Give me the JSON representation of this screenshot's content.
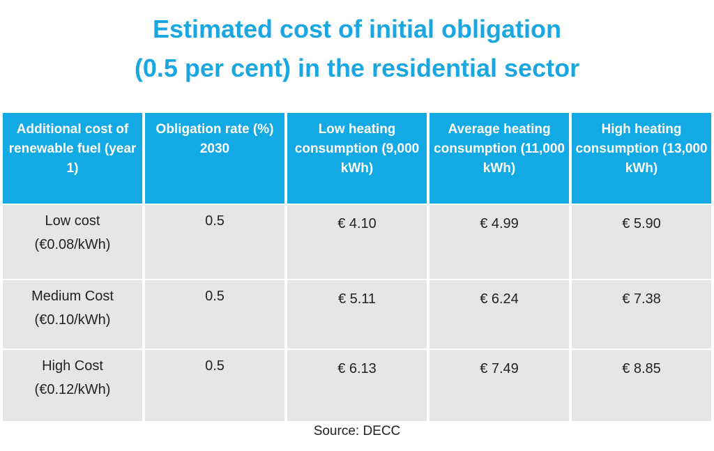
{
  "title": {
    "line1": "Estimated cost of initial obligation",
    "line2": "(0.5 per cent) in the residential sector"
  },
  "table": {
    "headers": [
      "Additional cost of renewable fuel (year 1)",
      "Obligation rate (%) 2030",
      "Low heating consumption (9,000 kWh)",
      "Average heating consumption (11,000 kWh)",
      "High heating consumption (13,000 kWh)"
    ],
    "rows": [
      {
        "cost_name": "Low cost",
        "cost_price": "(€0.08/kWh)",
        "rate": "0.5",
        "low": "€ 4.10",
        "avg": "€ 4.99",
        "high": "€ 5.90"
      },
      {
        "cost_name": "Medium Cost",
        "cost_price": "(€0.10/kWh)",
        "rate": "0.5",
        "low": "€ 5.11",
        "avg": "€ 6.24",
        "high": "€ 7.38"
      },
      {
        "cost_name": "High Cost",
        "cost_price": "(€0.12/kWh)",
        "rate": "0.5",
        "low": "€ 6.13",
        "avg": "€ 7.49",
        "high": "€ 8.85"
      }
    ]
  },
  "source": "Source: DECC",
  "colors": {
    "title": "#1aa6e0",
    "header_bg": "#12a9e5",
    "cell_bg": "#e6e6e6"
  }
}
